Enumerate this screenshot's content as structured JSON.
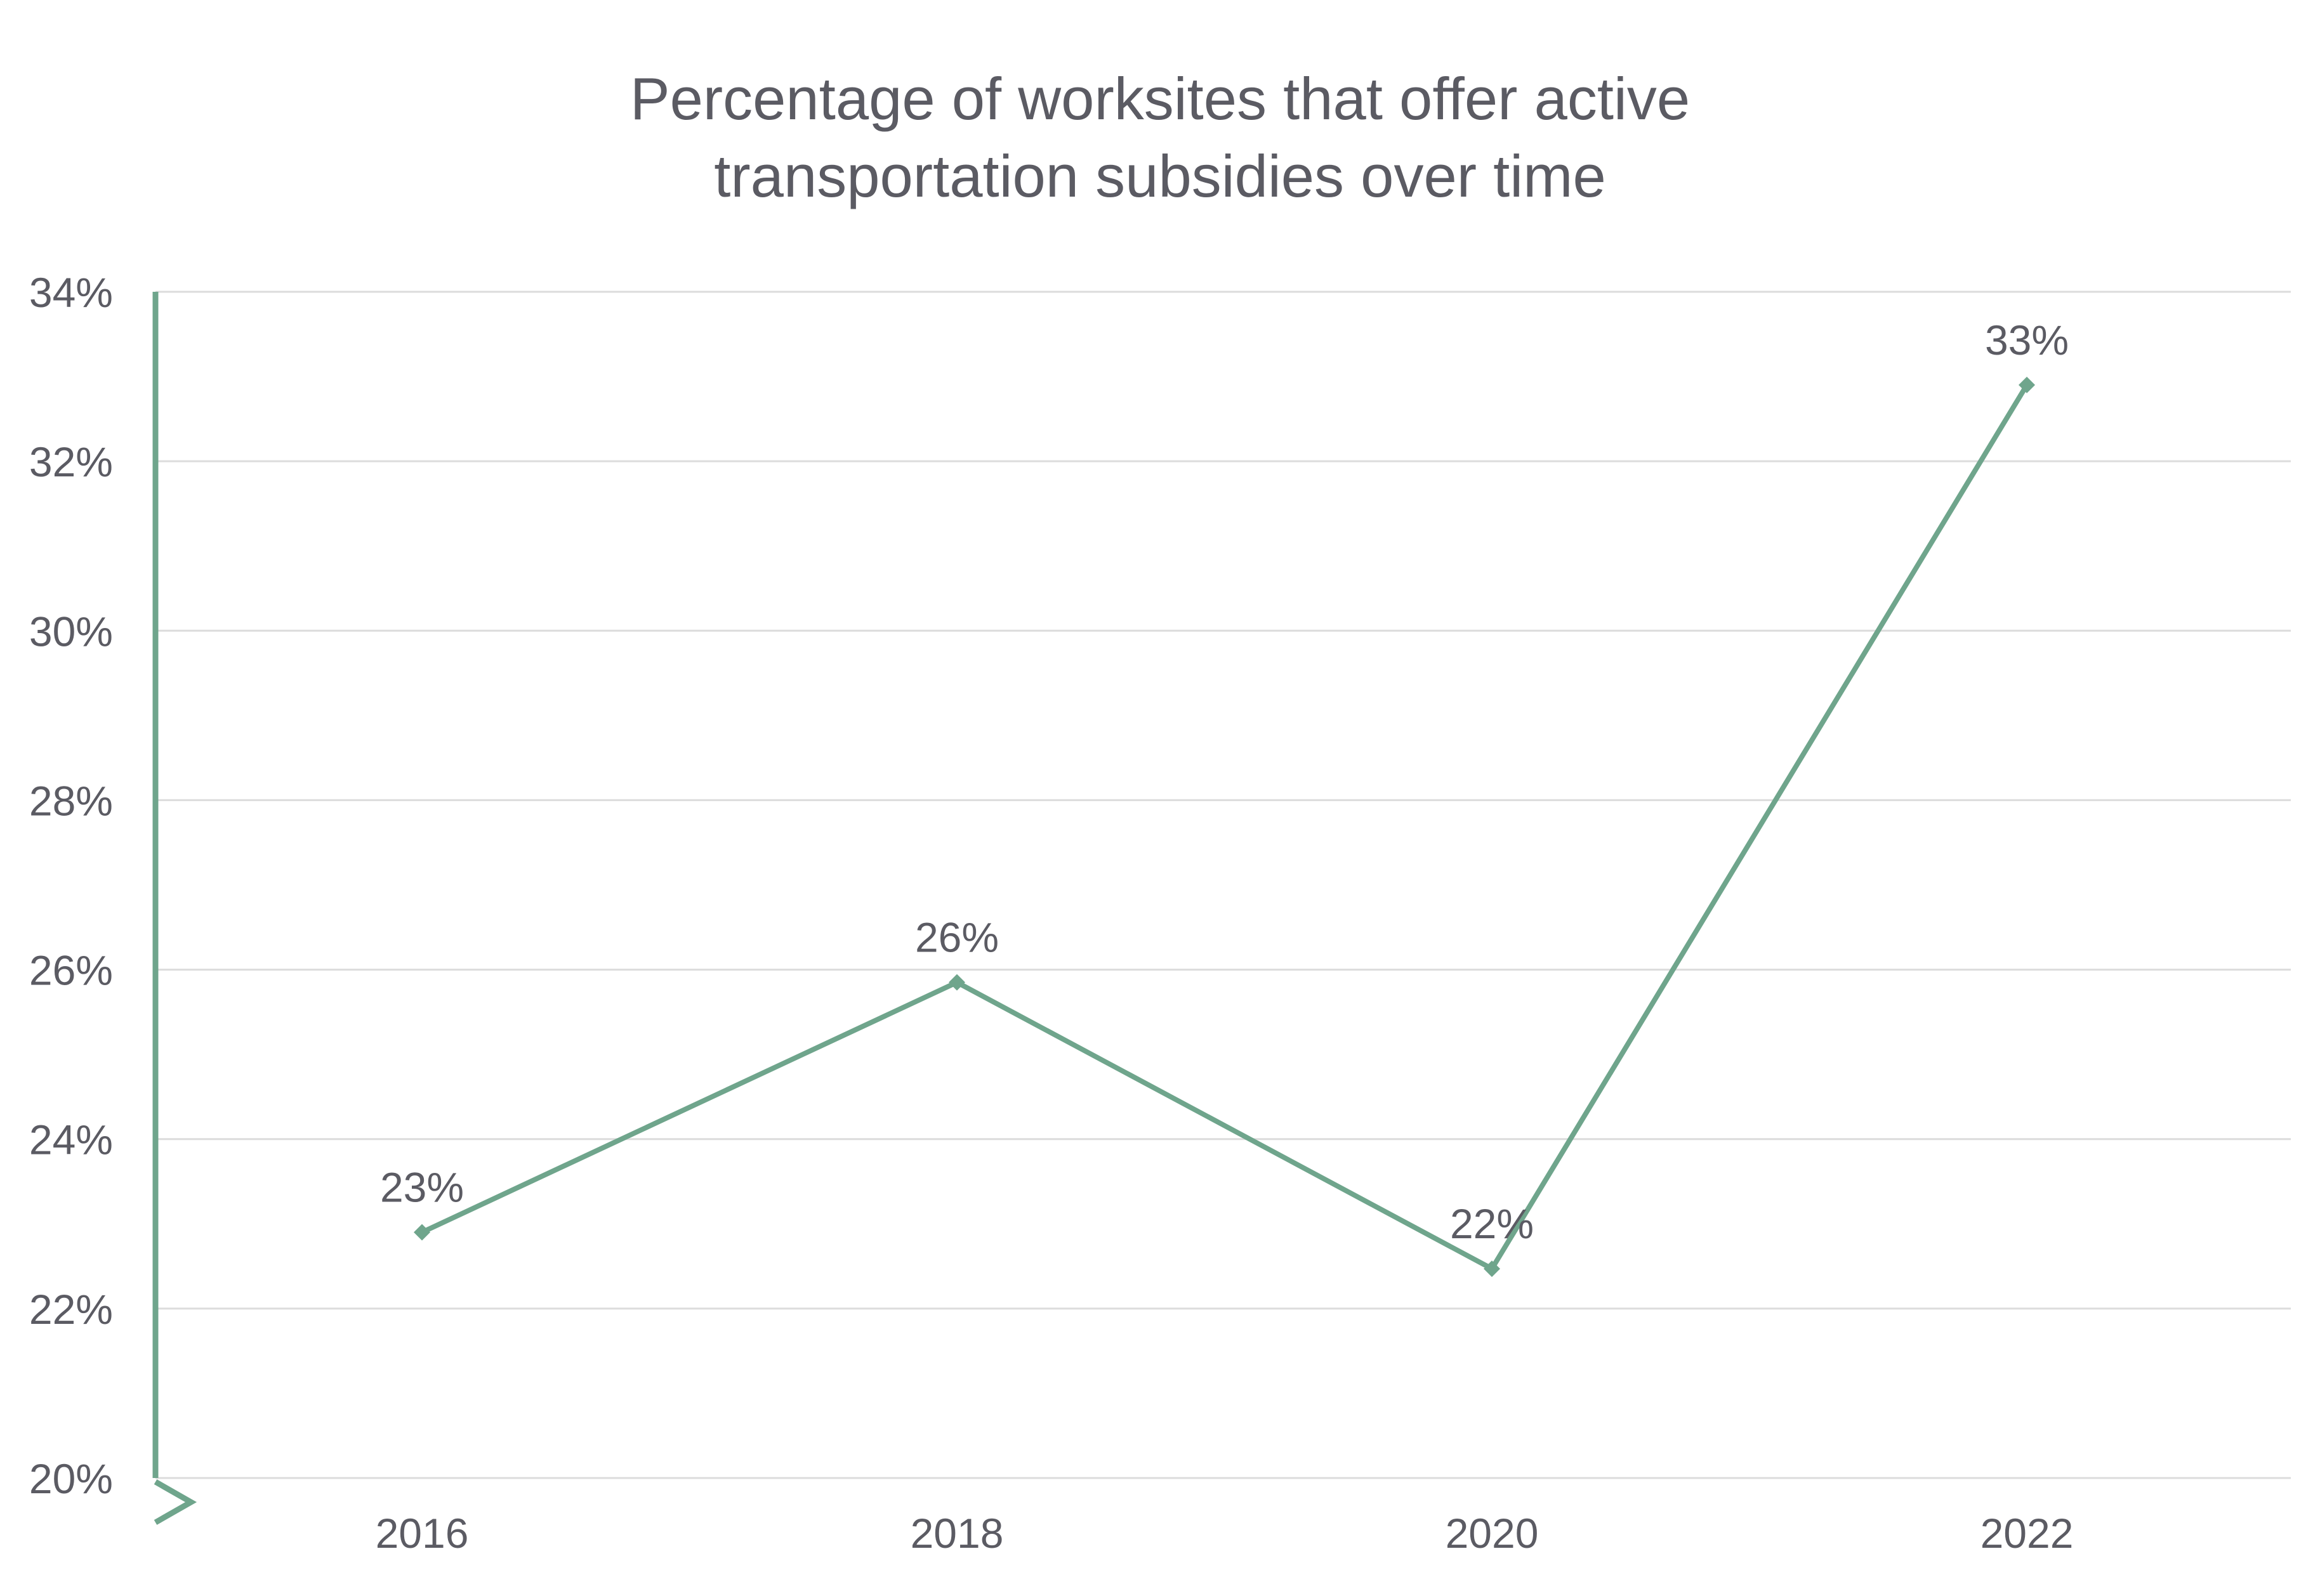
{
  "chart_data": {
    "type": "line",
    "title": "Percentage of worksites that offer active transportation subsidies over time",
    "title_lines": [
      "Percentage of worksites that offer active",
      "transportation subsidies over time"
    ],
    "xlabel": "",
    "ylabel": "",
    "categories": [
      "2016",
      "2018",
      "2020",
      "2022"
    ],
    "series": [
      {
        "values": [
          22.9,
          25.85,
          22.47,
          32.9
        ],
        "data_labels": [
          "23%",
          "26%",
          "22%",
          "33%"
        ]
      }
    ],
    "ylim": [
      20,
      34
    ],
    "yticks": [
      20,
      22,
      24,
      26,
      28,
      30,
      32,
      34
    ],
    "ytick_labels": [
      "20%",
      "22%",
      "24%",
      "26%",
      "28%",
      "30%",
      "32%",
      "34%"
    ],
    "y_axis_break": true,
    "grid": true,
    "legend": "none",
    "colors": {
      "series": "#6fa58c",
      "grid": "#dcdcdc",
      "text": "#5b5b63"
    }
  }
}
